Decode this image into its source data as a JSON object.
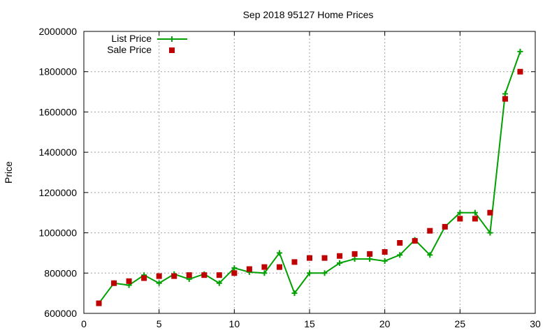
{
  "chart_data": {
    "type": "line",
    "title": "Sep 2018 95127 Home Prices",
    "xlabel": "",
    "ylabel": "Price",
    "xlim": [
      0,
      30
    ],
    "ylim": [
      600000,
      2000000
    ],
    "x_ticks": [
      0,
      5,
      10,
      15,
      20,
      25,
      30
    ],
    "y_ticks": [
      600000,
      800000,
      1000000,
      1200000,
      1400000,
      1600000,
      1800000,
      2000000
    ],
    "grid": true,
    "legend_position": "top-left",
    "series": [
      {
        "name": "List Price",
        "style": "line-plus",
        "color": "#00a000",
        "x": [
          1,
          2,
          3,
          4,
          5,
          6,
          7,
          8,
          9,
          10,
          11,
          12,
          13,
          14,
          15,
          16,
          17,
          18,
          19,
          20,
          21,
          22,
          23,
          24,
          25,
          26,
          27,
          28,
          29
        ],
        "values": [
          650000,
          750000,
          740000,
          790000,
          750000,
          795000,
          770000,
          795000,
          750000,
          825000,
          805000,
          800000,
          900000,
          700000,
          800000,
          800000,
          850000,
          870000,
          870000,
          860000,
          890000,
          965000,
          890000,
          1030000,
          1100000,
          1100000,
          1000000,
          1690000,
          1900000
        ]
      },
      {
        "name": "Sale Price",
        "style": "square-points",
        "color": "#c00000",
        "x": [
          1,
          2,
          3,
          4,
          5,
          6,
          7,
          8,
          9,
          10,
          11,
          12,
          13,
          14,
          15,
          16,
          17,
          18,
          19,
          20,
          21,
          22,
          23,
          24,
          25,
          26,
          27,
          28,
          29
        ],
        "values": [
          650000,
          750000,
          760000,
          775000,
          785000,
          785000,
          790000,
          790000,
          790000,
          800000,
          820000,
          830000,
          830000,
          855000,
          875000,
          875000,
          885000,
          895000,
          895000,
          905000,
          950000,
          960000,
          1010000,
          1030000,
          1070000,
          1070000,
          1100000,
          1665000,
          1800000
        ]
      }
    ]
  }
}
